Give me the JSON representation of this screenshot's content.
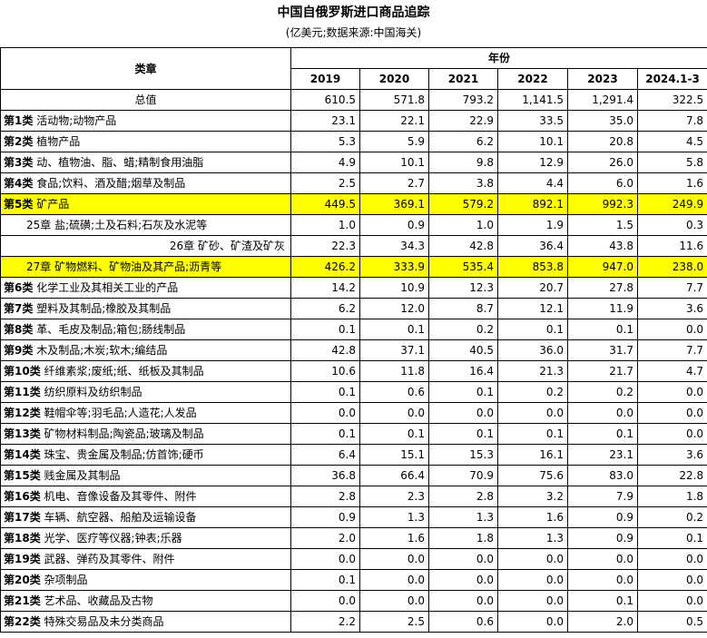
{
  "title": "中国自俄罗斯进口商品追踪",
  "subtitle": "(亿美元;数据来源:中国海关)",
  "header": {
    "category_label": "类章",
    "year_group_label": "年份",
    "years": [
      "2019",
      "2020",
      "2021",
      "2022",
      "2023",
      "2024.1-3"
    ]
  },
  "highlight_color": "#ffff00",
  "rows": [
    {
      "cls": "",
      "name": "总值",
      "values": [
        "610.5",
        "571.8",
        "793.2",
        "1,141.5",
        "1,291.4",
        "322.5"
      ],
      "type": "total",
      "highlight": false
    },
    {
      "cls": "第1类",
      "name": "活动物;动物产品",
      "values": [
        "23.1",
        "22.1",
        "22.9",
        "33.5",
        "35.0",
        "7.8"
      ],
      "type": "class",
      "highlight": false
    },
    {
      "cls": "第2类",
      "name": "植物产品",
      "values": [
        "5.3",
        "5.9",
        "6.2",
        "10.1",
        "20.8",
        "4.5"
      ],
      "type": "class",
      "highlight": false
    },
    {
      "cls": "第3类",
      "name": "动、植物油、脂、蜡;精制食用油脂",
      "values": [
        "4.9",
        "10.1",
        "9.8",
        "12.9",
        "26.0",
        "5.8"
      ],
      "type": "class",
      "highlight": false
    },
    {
      "cls": "第4类",
      "name": "食品;饮料、酒及醋;烟草及制品",
      "values": [
        "2.5",
        "2.7",
        "3.8",
        "4.4",
        "6.0",
        "1.6"
      ],
      "type": "class",
      "highlight": false
    },
    {
      "cls": "第5类",
      "name": "矿产品",
      "values": [
        "449.5",
        "369.1",
        "579.2",
        "892.1",
        "992.3",
        "249.9"
      ],
      "type": "class",
      "highlight": true
    },
    {
      "cls": "",
      "name": "25章 盐;硫磺;土及石料;石灰及水泥等",
      "values": [
        "1.0",
        "0.9",
        "1.0",
        "1.9",
        "1.5",
        "0.3"
      ],
      "type": "sub1",
      "highlight": false
    },
    {
      "cls": "",
      "name": "26章 矿砂、矿渣及矿灰",
      "values": [
        "22.3",
        "34.3",
        "42.8",
        "36.4",
        "43.8",
        "11.6"
      ],
      "type": "sub2",
      "highlight": false
    },
    {
      "cls": "",
      "name": "27章 矿物燃料、矿物油及其产品;沥青等",
      "values": [
        "426.2",
        "333.9",
        "535.4",
        "853.8",
        "947.0",
        "238.0"
      ],
      "type": "sub1",
      "highlight": true
    },
    {
      "cls": "第6类",
      "name": "化学工业及其相关工业的产品",
      "values": [
        "14.2",
        "10.9",
        "12.3",
        "20.7",
        "27.8",
        "7.7"
      ],
      "type": "class",
      "highlight": false
    },
    {
      "cls": "第7类",
      "name": "塑料及其制品;橡胶及其制品",
      "values": [
        "6.2",
        "12.0",
        "8.7",
        "12.1",
        "11.9",
        "3.6"
      ],
      "type": "class",
      "highlight": false
    },
    {
      "cls": "第8类",
      "name": "革、毛皮及制品;箱包;肠线制品",
      "values": [
        "0.1",
        "0.1",
        "0.2",
        "0.1",
        "0.1",
        "0.0"
      ],
      "type": "class",
      "highlight": false
    },
    {
      "cls": "第9类",
      "name": "木及制品;木炭;软木;编结品",
      "values": [
        "42.8",
        "37.1",
        "40.5",
        "36.0",
        "31.7",
        "7.7"
      ],
      "type": "class",
      "highlight": false
    },
    {
      "cls": "第10类",
      "name": "纤维素浆;废纸;纸、纸板及其制品",
      "values": [
        "10.6",
        "11.8",
        "16.4",
        "21.3",
        "21.7",
        "4.7"
      ],
      "type": "class",
      "highlight": false
    },
    {
      "cls": "第11类",
      "name": "纺织原料及纺织制品",
      "values": [
        "0.1",
        "0.6",
        "0.1",
        "0.2",
        "0.2",
        "0.0"
      ],
      "type": "class",
      "highlight": false
    },
    {
      "cls": "第12类",
      "name": "鞋帽伞等;羽毛品;人造花;人发品",
      "values": [
        "0.0",
        "0.0",
        "0.0",
        "0.0",
        "0.0",
        "0.0"
      ],
      "type": "class",
      "highlight": false
    },
    {
      "cls": "第13类",
      "name": "矿物材料制品;陶瓷品;玻璃及制品",
      "values": [
        "0.1",
        "0.1",
        "0.1",
        "0.1",
        "0.1",
        "0.0"
      ],
      "type": "class",
      "highlight": false
    },
    {
      "cls": "第14类",
      "name": "珠宝、贵金属及制品;仿首饰;硬币",
      "values": [
        "6.4",
        "15.1",
        "15.3",
        "16.1",
        "23.1",
        "3.6"
      ],
      "type": "class",
      "highlight": false
    },
    {
      "cls": "第15类",
      "name": "贱金属及其制品",
      "values": [
        "36.8",
        "66.4",
        "70.9",
        "75.6",
        "83.0",
        "22.8"
      ],
      "type": "class",
      "highlight": false
    },
    {
      "cls": "第16类",
      "name": "机电、音像设备及其零件、附件",
      "values": [
        "2.8",
        "2.3",
        "2.8",
        "3.2",
        "7.9",
        "1.8"
      ],
      "type": "class",
      "highlight": false
    },
    {
      "cls": "第17类",
      "name": "车辆、航空器、船舶及运输设备",
      "values": [
        "0.9",
        "1.3",
        "1.3",
        "1.6",
        "0.9",
        "0.2"
      ],
      "type": "class",
      "highlight": false
    },
    {
      "cls": "第18类",
      "name": "光学、医疗等仪器;钟表;乐器",
      "values": [
        "2.0",
        "1.6",
        "1.8",
        "1.3",
        "0.9",
        "0.1"
      ],
      "type": "class",
      "highlight": false
    },
    {
      "cls": "第19类",
      "name": "武器、弹药及其零件、附件",
      "values": [
        "0.0",
        "0.0",
        "0.0",
        "0.0",
        "0.0",
        "0.0"
      ],
      "type": "class",
      "highlight": false
    },
    {
      "cls": "第20类",
      "name": "杂项制品",
      "values": [
        "0.1",
        "0.0",
        "0.0",
        "0.0",
        "0.0",
        "0.0"
      ],
      "type": "class",
      "highlight": false
    },
    {
      "cls": "第21类",
      "name": "艺术品、收藏品及古物",
      "values": [
        "0.0",
        "0.0",
        "0.0",
        "0.0",
        "0.1",
        "0.0"
      ],
      "type": "class",
      "highlight": false
    },
    {
      "cls": "第22类",
      "name": "特殊交易品及未分类商品",
      "values": [
        "2.2",
        "2.5",
        "0.6",
        "0.0",
        "2.0",
        "0.5"
      ],
      "type": "class",
      "highlight": false
    }
  ]
}
